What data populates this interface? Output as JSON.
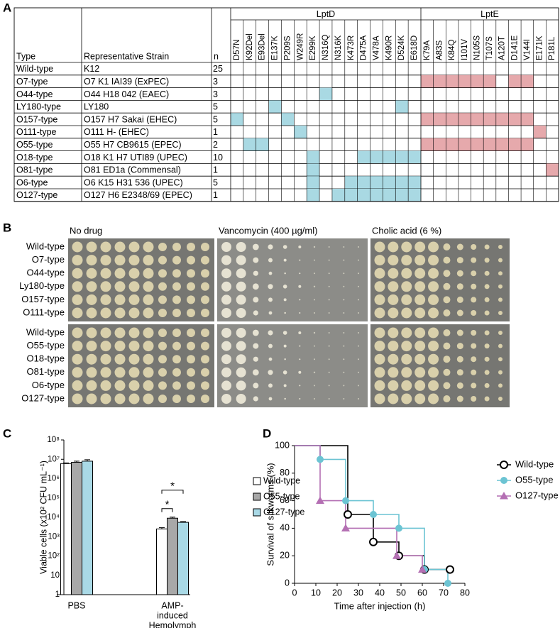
{
  "panel_a": {
    "label": "A",
    "groups": [
      "LptD",
      "LptE"
    ],
    "headers": {
      "type": "Type",
      "strain": "Representative Strain",
      "n": "n"
    },
    "lptd_mutations": [
      "D57N",
      "K92Del",
      "E93Del",
      "E137K",
      "P209S",
      "W249R",
      "E299K",
      "N316Q",
      "N316K",
      "K473R",
      "D475A",
      "V478A",
      "K490R",
      "D524K",
      "E618D"
    ],
    "lpte_mutations": [
      "K79A",
      "A83S",
      "K84Q",
      "I101V",
      "N105S",
      "T107S",
      "A120T",
      "D141E",
      "V144I",
      "E171K",
      "P181L"
    ],
    "lptd_color": "#a9d9e3",
    "lpte_color": "#e6a9ac",
    "rows": [
      {
        "type": "Wild-type",
        "strain": "K12",
        "n": 25,
        "lptd": [
          false,
          false,
          false,
          false,
          false,
          false,
          false,
          false,
          false,
          false,
          false,
          false,
          false,
          false,
          false
        ],
        "lpte": [
          false,
          false,
          false,
          false,
          false,
          false,
          false,
          false,
          false,
          false,
          false
        ]
      },
      {
        "type": "O7-type",
        "strain": "O7 K1 IAI39 (ExPEC)",
        "n": 3,
        "lptd": [
          false,
          false,
          false,
          false,
          false,
          false,
          false,
          false,
          false,
          false,
          false,
          false,
          false,
          false,
          false
        ],
        "lpte": [
          true,
          true,
          true,
          true,
          true,
          true,
          false,
          true,
          true,
          false,
          false
        ]
      },
      {
        "type": "O44-type",
        "strain": "O44 H18 042 (EAEC)",
        "n": 3,
        "lptd": [
          false,
          false,
          false,
          false,
          false,
          false,
          false,
          true,
          false,
          false,
          false,
          false,
          false,
          false,
          false
        ],
        "lpte": [
          false,
          false,
          false,
          false,
          false,
          false,
          false,
          false,
          false,
          false,
          false
        ]
      },
      {
        "type": "LY180-type",
        "strain": "LY180",
        "n": 5,
        "lptd": [
          false,
          false,
          false,
          true,
          false,
          false,
          false,
          false,
          false,
          false,
          false,
          false,
          false,
          true,
          false
        ],
        "lpte": [
          false,
          false,
          false,
          false,
          false,
          false,
          false,
          false,
          false,
          false,
          false
        ]
      },
      {
        "type": "O157-type",
        "strain": "O157 H7 Sakai (EHEC)",
        "n": 5,
        "lptd": [
          true,
          false,
          false,
          false,
          true,
          false,
          false,
          false,
          false,
          false,
          false,
          false,
          false,
          false,
          false
        ],
        "lpte": [
          true,
          true,
          true,
          true,
          true,
          true,
          true,
          true,
          true,
          false,
          false
        ]
      },
      {
        "type": "O111-type",
        "strain": "O111 H- (EHEC)",
        "n": 1,
        "lptd": [
          false,
          false,
          false,
          false,
          false,
          true,
          false,
          false,
          false,
          false,
          false,
          false,
          false,
          false,
          false
        ],
        "lpte": [
          false,
          false,
          false,
          false,
          false,
          false,
          false,
          false,
          false,
          true,
          false
        ]
      },
      {
        "type": "O55-type",
        "strain": "O55 H7 CB9615 (EPEC)",
        "n": 2,
        "lptd": [
          false,
          true,
          true,
          false,
          false,
          false,
          false,
          false,
          false,
          false,
          false,
          false,
          false,
          false,
          false
        ],
        "lpte": [
          true,
          true,
          true,
          true,
          true,
          true,
          true,
          true,
          true,
          false,
          false
        ]
      },
      {
        "type": "O18-type",
        "strain": "O18 K1 H7 UTI89 (UPEC)",
        "n": 10,
        "lptd": [
          false,
          false,
          false,
          false,
          false,
          false,
          true,
          false,
          false,
          false,
          true,
          true,
          true,
          true,
          true
        ],
        "lpte": [
          false,
          false,
          false,
          false,
          false,
          false,
          false,
          false,
          false,
          false,
          false
        ]
      },
      {
        "type": "O81-type",
        "strain": "O81 ED1a (Commensal)",
        "n": 1,
        "lptd": [
          false,
          false,
          false,
          false,
          false,
          false,
          true,
          false,
          false,
          false,
          false,
          false,
          false,
          false,
          false
        ],
        "lpte": [
          false,
          false,
          false,
          false,
          false,
          false,
          false,
          false,
          false,
          false,
          true
        ]
      },
      {
        "type": "O6-type",
        "strain": "O6 K15 H31 536 (UPEC)",
        "n": 5,
        "lptd": [
          false,
          false,
          false,
          false,
          false,
          false,
          true,
          false,
          false,
          true,
          true,
          true,
          true,
          true,
          true
        ],
        "lpte": [
          false,
          false,
          false,
          false,
          false,
          false,
          false,
          false,
          false,
          false,
          false
        ]
      },
      {
        "type": "O127-type",
        "strain": "O127 H6 E2348/69 (EPEC)",
        "n": 1,
        "lptd": [
          false,
          false,
          false,
          false,
          false,
          false,
          true,
          false,
          true,
          true,
          true,
          true,
          true,
          true,
          true
        ],
        "lpte": [
          false,
          false,
          false,
          false,
          false,
          false,
          false,
          false,
          false,
          false,
          false
        ]
      }
    ]
  },
  "panel_b": {
    "label": "B",
    "conditions": [
      "No drug",
      "Vancomycin (400 µg/ml)",
      "Cholic acid (6 %)"
    ],
    "groups": [
      [
        "Wild-type",
        "O7-type",
        "O44-type",
        "Ly180-type",
        "O157-type",
        "O111-type"
      ],
      [
        "Wild-type",
        "O55-type",
        "O18-type",
        "O81-type",
        "O6-type",
        "O127-type"
      ]
    ]
  },
  "chart_data": [
    {
      "panel_label": "C",
      "type": "bar",
      "ylabel": "Viable cells (x10² CFU mL⁻¹)",
      "log_scale": true,
      "categories": [
        [
          "PBS"
        ],
        [
          "AMP-",
          "induced",
          "Hemolymph"
        ]
      ],
      "series": [
        {
          "name": "Wild-type",
          "color": "#ffffff",
          "values": [
            6000000,
            2500
          ],
          "errors": [
            500000,
            400
          ]
        },
        {
          "name": "O55-type",
          "color": "#a8a8a8",
          "values": [
            7000000,
            9000
          ],
          "errors": [
            1000000,
            1200
          ]
        },
        {
          "name": "O127-type",
          "color": "#a9d9e6",
          "values": [
            8000000,
            5500
          ],
          "errors": [
            1500000,
            500
          ]
        }
      ],
      "ylim": [
        1,
        100000000
      ],
      "yticks": [
        1,
        10,
        {
          "value": 100,
          "label": "10²"
        },
        {
          "value": 1000,
          "label": "10³"
        },
        {
          "value": 10000,
          "label": "10⁴"
        },
        {
          "value": 100000,
          "label": "10⁵"
        },
        {
          "value": 1000000,
          "label": "10⁶"
        },
        {
          "value": 10000000,
          "label": "10⁷"
        },
        {
          "value": 100000000,
          "label": "10⁸"
        }
      ],
      "significance": [
        {
          "label": "*",
          "between": [
            0,
            1
          ],
          "category": 1
        },
        {
          "label": "*",
          "between": [
            0,
            2
          ],
          "category": 1
        }
      ],
      "legend": "right"
    },
    {
      "panel_label": "D",
      "type": "step",
      "xlabel": "Time after injection (h)",
      "ylabel": "Survival of silkworms (%)",
      "xlim": [
        0,
        80
      ],
      "xticks": [
        0,
        10,
        20,
        30,
        40,
        50,
        60,
        70,
        80
      ],
      "ylim": [
        0,
        100
      ],
      "yticks": [
        0,
        20,
        40,
        60,
        80,
        100
      ],
      "series": [
        {
          "name": "Wild-type",
          "color": "#000000",
          "marker": "open-circle",
          "x": [
            0,
            25,
            37,
            49,
            61,
            73
          ],
          "values": [
            100,
            50,
            30,
            20,
            10,
            10
          ]
        },
        {
          "name": "O55-type",
          "color": "#6cc4d3",
          "marker": "circle",
          "x": [
            0,
            12,
            24,
            37,
            49,
            61,
            72
          ],
          "values": [
            100,
            90,
            60,
            50,
            40,
            10,
            0
          ]
        },
        {
          "name": "O127-type",
          "color": "#b46fb3",
          "marker": "triangle",
          "x": [
            0,
            12,
            24,
            48,
            60
          ],
          "values": [
            100,
            60,
            40,
            20,
            10
          ]
        }
      ],
      "legend": "right"
    }
  ]
}
